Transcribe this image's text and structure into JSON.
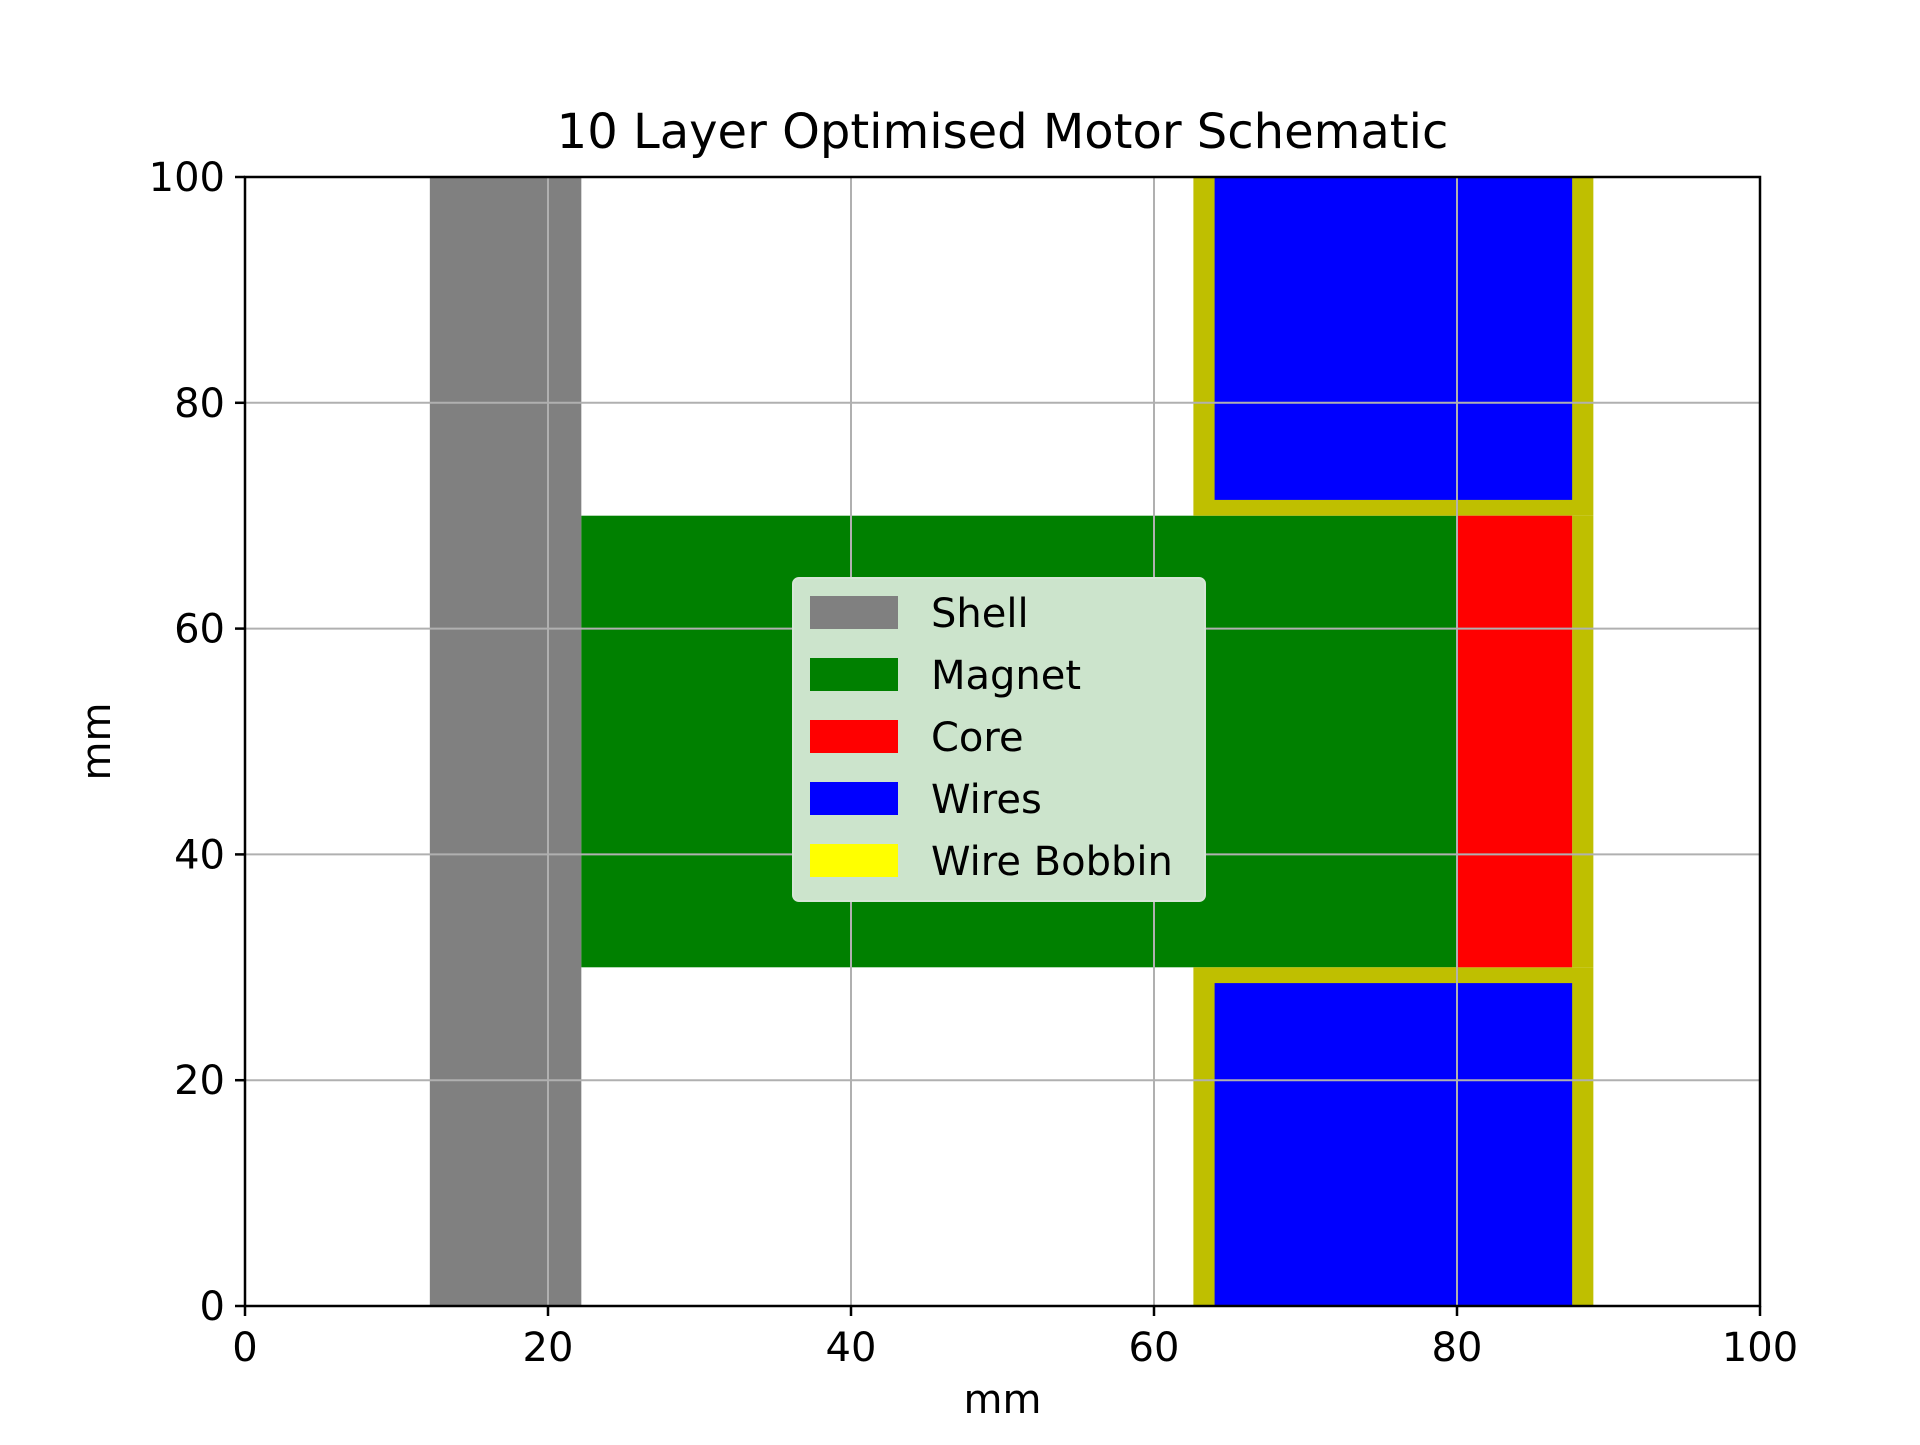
{
  "chart_data": {
    "type": "schematic",
    "title": "10 Layer Optimised Motor Schematic",
    "xlabel": "mm",
    "ylabel": "mm",
    "xlim": [
      0,
      100
    ],
    "ylim": [
      0,
      100
    ],
    "xticks": [
      "0",
      "20",
      "40",
      "60",
      "80",
      "100"
    ],
    "yticks": [
      "0",
      "20",
      "40",
      "60",
      "80",
      "100"
    ],
    "grid": true,
    "legend_position": "center",
    "legend": [
      {
        "label": "Shell",
        "color": "#808080"
      },
      {
        "label": "Magnet",
        "color": "#008000"
      },
      {
        "label": "Core",
        "color": "#ff0000"
      },
      {
        "label": "Wires",
        "color": "#0000ff"
      },
      {
        "label": "Wire Bobbin",
        "color": "#ffff00"
      }
    ],
    "bobbin_draw_color": "#bfbf00",
    "regions": [
      {
        "name": "Shell",
        "color": "#808080",
        "x0": 12.2,
        "x1": 22.2,
        "y0": 0,
        "y1": 100
      },
      {
        "name": "Magnet",
        "color": "#008000",
        "x0": 22.2,
        "x1": 80.0,
        "y0": 30.0,
        "y1": 70.0
      },
      {
        "name": "Wire Bobbin",
        "color": "#bfbf00",
        "x0": 62.6,
        "x1": 89.0,
        "y0": 70.0,
        "y1": 100
      },
      {
        "name": "Wire Bobbin",
        "color": "#bfbf00",
        "x0": 62.6,
        "x1": 89.0,
        "y0": 0,
        "y1": 30.0
      },
      {
        "name": "Wire Bobbin",
        "color": "#bfbf00",
        "x0": 87.6,
        "x1": 89.0,
        "y0": 30.0,
        "y1": 70.0
      },
      {
        "name": "Wires",
        "color": "#0000ff",
        "x0": 64.0,
        "x1": 87.6,
        "y0": 71.4,
        "y1": 100
      },
      {
        "name": "Wires",
        "color": "#0000ff",
        "x0": 64.0,
        "x1": 87.6,
        "y0": 0,
        "y1": 28.6
      },
      {
        "name": "Core",
        "color": "#ff0000",
        "x0": 80.0,
        "x1": 87.6,
        "y0": 30.0,
        "y1": 70.0
      }
    ]
  }
}
